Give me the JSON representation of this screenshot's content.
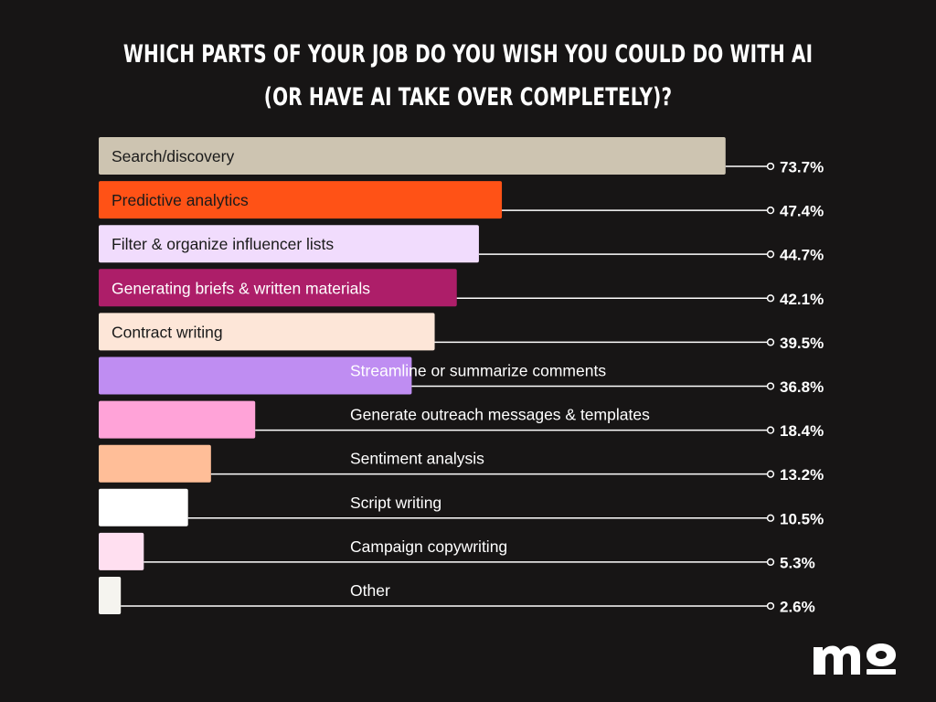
{
  "chart_data": {
    "type": "bar",
    "orientation": "horizontal",
    "title_lines": [
      "WHICH PARTS OF YOUR JOB DO YOU WISH YOU COULD DO WITH AI",
      "(OR HAVE AI TAKE OVER COMPLETELY)?"
    ],
    "xlabel": "",
    "ylabel": "",
    "xlim": [
      0,
      100
    ],
    "grid": false,
    "legend": "none",
    "categories": [
      "Search/discovery",
      "Predictive analytics",
      "Filter & organize influencer lists",
      "Generating briefs & written materials",
      "Contract writing",
      "Streamline or summarize comments",
      "Generate outreach messages & templates",
      "Sentiment analysis",
      "Script writing",
      "Campaign copywriting",
      "Other"
    ],
    "values": [
      73.7,
      47.4,
      44.7,
      42.1,
      39.5,
      36.8,
      18.4,
      13.2,
      10.5,
      5.3,
      2.6
    ],
    "value_labels": [
      "73.7%",
      "47.4%",
      "44.7%",
      "42.1%",
      "39.5%",
      "36.8%",
      "18.4%",
      "13.2%",
      "10.5%",
      "5.3%",
      "2.6%"
    ],
    "colors": [
      "#cdc4b1",
      "#ff5216",
      "#f1dcfd",
      "#ad1e69",
      "#fde6d8",
      "#bf8df2",
      "#ffa3d8",
      "#ffbe98",
      "#ffffff",
      "#ffdff0",
      "#f5f4ef"
    ],
    "label_colors": [
      "#1a1a1a",
      "#1a1a1a",
      "#1a1a1a",
      "#ffffff",
      "#1a1a1a",
      "#ffffff",
      "#ffffff",
      "#ffffff",
      "#ffffff",
      "#ffffff",
      "#ffffff"
    ]
  },
  "logo": {
    "text": "mo",
    "color": "#ffffff"
  }
}
